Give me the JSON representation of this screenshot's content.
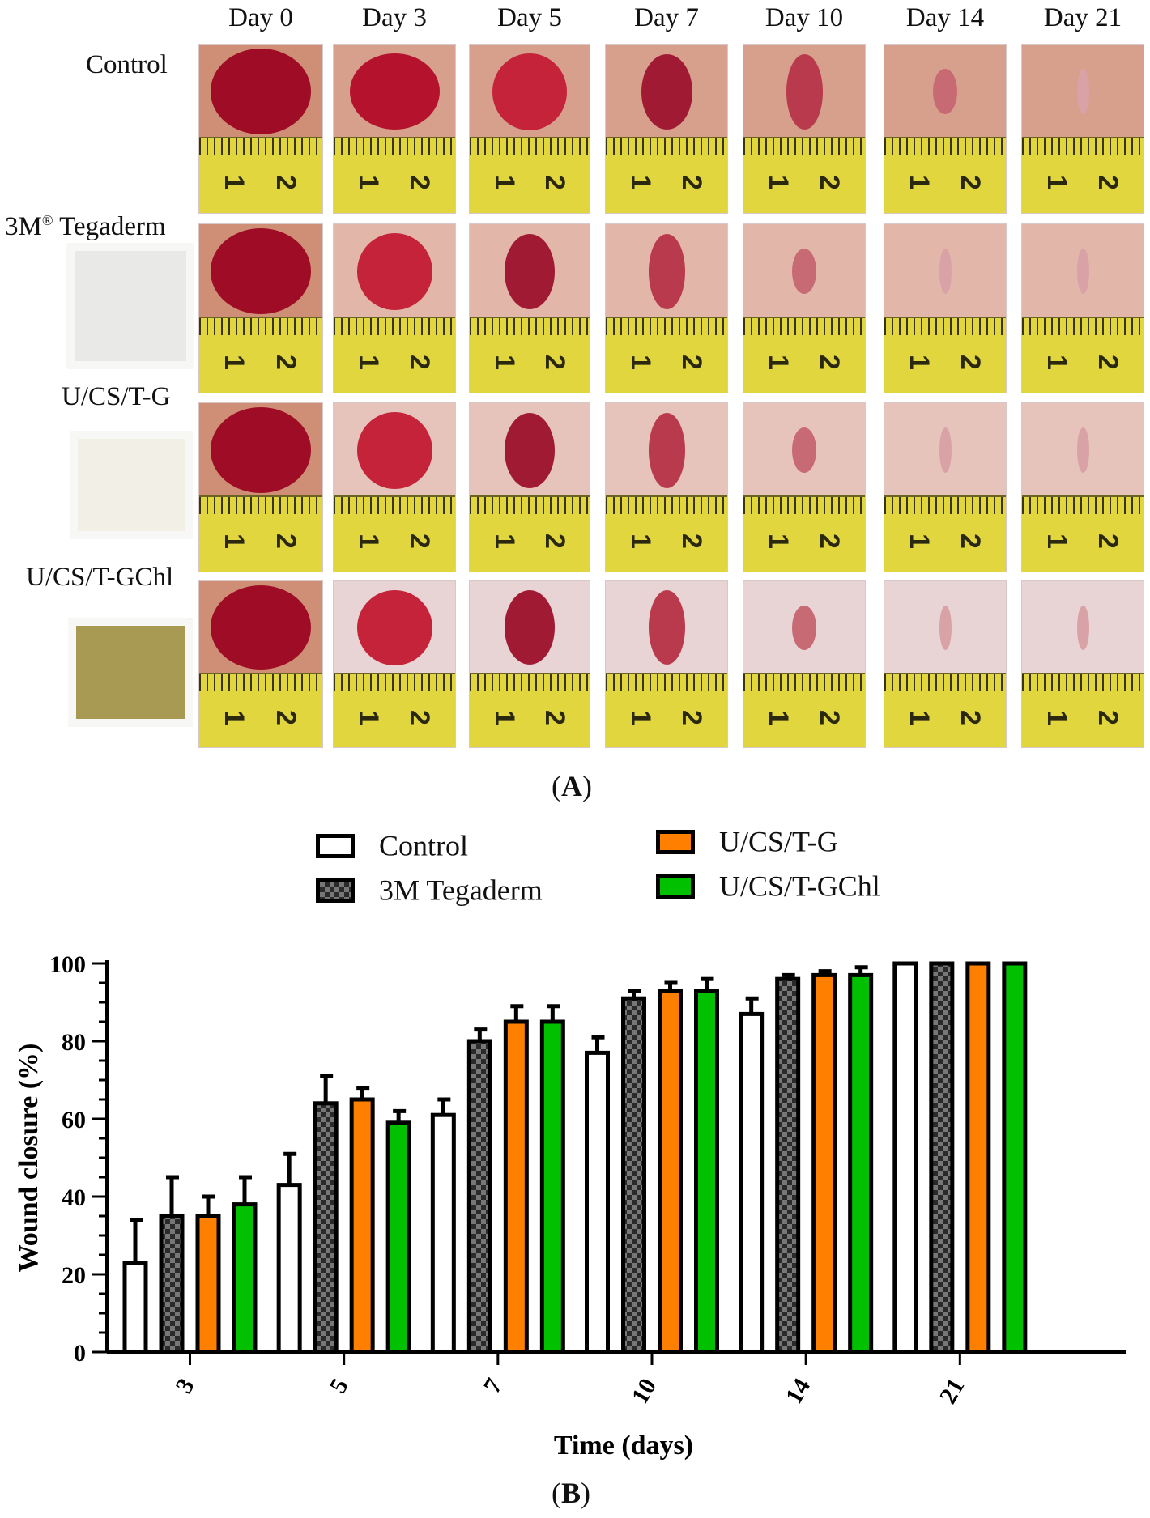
{
  "panel_a": {
    "label": "A",
    "days": [
      "Day 0",
      "Day 3",
      "Day 5",
      "Day 7",
      "Day 10",
      "Day 14",
      "Day 21"
    ],
    "rows": [
      {
        "name": "Control",
        "sup": "",
        "swatch": null
      },
      {
        "name": "3M",
        "sup": "®",
        "tail": " Tegaderm",
        "swatch": "#e9e9e7"
      },
      {
        "name": "U/CS/T-G",
        "sup": "",
        "swatch": "#f1efe6"
      },
      {
        "name": "U/CS/T-GChl",
        "sup": "",
        "swatch": "#a89a52"
      }
    ],
    "ruler_numbers": [
      "1",
      "2"
    ]
  },
  "panel_b": {
    "label": "B",
    "legend": [
      "Control",
      "3M Tegaderm",
      "U/CS/T-G",
      "U/CS/T-GChl"
    ]
  },
  "chart_data": {
    "type": "bar",
    "xlabel": "Time (days)",
    "ylabel": "Wound closure (%)",
    "ylim": [
      0,
      100
    ],
    "yticks": [
      0,
      20,
      40,
      60,
      80,
      100
    ],
    "categories": [
      "3",
      "5",
      "7",
      "10",
      "14",
      "21"
    ],
    "series": [
      {
        "name": "Control",
        "values": [
          23,
          43,
          61,
          77,
          87,
          100
        ],
        "errors": [
          11,
          8,
          4,
          4,
          4,
          0
        ],
        "color": "#ffffff",
        "pattern": "none"
      },
      {
        "name": "3M Tegaderm",
        "values": [
          35,
          64,
          80,
          91,
          96,
          100
        ],
        "errors": [
          10,
          7,
          3,
          2,
          1,
          0
        ],
        "color": "#555555",
        "pattern": "checker"
      },
      {
        "name": "U/CS/T-G",
        "values": [
          35,
          65,
          85,
          93,
          97,
          100
        ],
        "errors": [
          5,
          3,
          4,
          2,
          1,
          0
        ],
        "color": "#ff7f00",
        "pattern": "none"
      },
      {
        "name": "U/CS/T-GChl",
        "values": [
          38,
          59,
          85,
          93,
          97,
          100
        ],
        "errors": [
          7,
          3,
          4,
          3,
          2,
          0
        ],
        "color": "#00c000",
        "pattern": "none"
      }
    ],
    "grid": false,
    "legend_position": "top"
  }
}
